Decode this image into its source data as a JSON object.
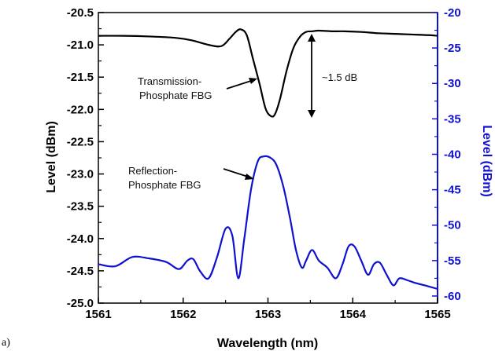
{
  "chart_data": {
    "type": "line",
    "panel_label": "a)",
    "xlabel": "Wavelength (nm)",
    "ylabel_left": "Level (dBm)",
    "ylabel_right": "Level (dBm)",
    "xlim": [
      1561,
      1565
    ],
    "ylim_left": [
      -25.0,
      -20.5
    ],
    "ylim_right": [
      -61,
      -20
    ],
    "x_ticks": [
      "1561",
      "1562",
      "1563",
      "1564",
      "1565"
    ],
    "y_ticks_left": [
      "-20.5",
      "-21.0",
      "-21.5",
      "-22.0",
      "-22.5",
      "-23.0",
      "-23.5",
      "-24.0",
      "-24.5",
      "-25.0"
    ],
    "y_ticks_right": [
      "-20",
      "-25",
      "-30",
      "-35",
      "-40",
      "-45",
      "-50",
      "-55",
      "-60"
    ],
    "grid": false,
    "colors": {
      "transmission": "#000000",
      "reflection": "#1010d0",
      "right_axis": "#1010d0"
    },
    "annotations": {
      "transmission_label": [
        "Transmission-",
        "Phosphate FBG"
      ],
      "reflection_label": [
        "Reflection-",
        "Phosphate FBG"
      ],
      "depth_label": "~1.5 dB"
    },
    "series": [
      {
        "axis": "left",
        "color": "#000000",
        "x": [
          1561.0,
          1561.3,
          1561.6,
          1561.9,
          1562.1,
          1562.3,
          1562.45,
          1562.55,
          1562.62,
          1562.68,
          1562.75,
          1562.82,
          1562.9,
          1562.97,
          1563.03,
          1563.08,
          1563.14,
          1563.22,
          1563.3,
          1563.38,
          1563.45,
          1563.52,
          1563.6,
          1563.75,
          1563.9,
          1564.1,
          1564.3,
          1564.5,
          1564.7,
          1564.9,
          1565.0
        ],
        "y": [
          -20.86,
          -20.86,
          -20.87,
          -20.89,
          -20.93,
          -21.0,
          -21.02,
          -20.9,
          -20.8,
          -20.76,
          -20.85,
          -21.2,
          -21.6,
          -21.98,
          -22.1,
          -22.08,
          -21.85,
          -21.4,
          -21.05,
          -20.87,
          -20.8,
          -20.79,
          -20.78,
          -20.79,
          -20.79,
          -20.8,
          -20.82,
          -20.83,
          -20.84,
          -20.85,
          -20.86
        ]
      },
      {
        "axis": "right",
        "color": "#1010d0",
        "x": [
          1561.0,
          1561.2,
          1561.4,
          1561.6,
          1561.8,
          1561.95,
          1562.05,
          1562.12,
          1562.2,
          1562.3,
          1562.4,
          1562.5,
          1562.58,
          1562.65,
          1562.72,
          1562.8,
          1562.88,
          1562.95,
          1563.03,
          1563.1,
          1563.18,
          1563.26,
          1563.33,
          1563.4,
          1563.45,
          1563.52,
          1563.6,
          1563.7,
          1563.8,
          1563.88,
          1563.95,
          1564.02,
          1564.1,
          1564.18,
          1564.25,
          1564.32,
          1564.4,
          1564.48,
          1564.55,
          1564.65,
          1564.75,
          1564.85,
          1565.0
        ],
        "y": [
          -55.5,
          -55.8,
          -54.5,
          -54.7,
          -55.2,
          -56.2,
          -55.0,
          -54.8,
          -56.5,
          -57.5,
          -54.5,
          -50.5,
          -51.5,
          -57.5,
          -52.0,
          -45.0,
          -41.0,
          -40.3,
          -40.5,
          -41.5,
          -44.5,
          -49.0,
          -53.5,
          -56.0,
          -55.0,
          -53.5,
          -55.0,
          -56.0,
          -57.5,
          -55.5,
          -53.0,
          -53.0,
          -55.0,
          -57.0,
          -55.5,
          -55.3,
          -57.0,
          -58.5,
          -57.5,
          -57.8,
          -58.2,
          -58.5,
          -59.0
        ]
      }
    ]
  }
}
